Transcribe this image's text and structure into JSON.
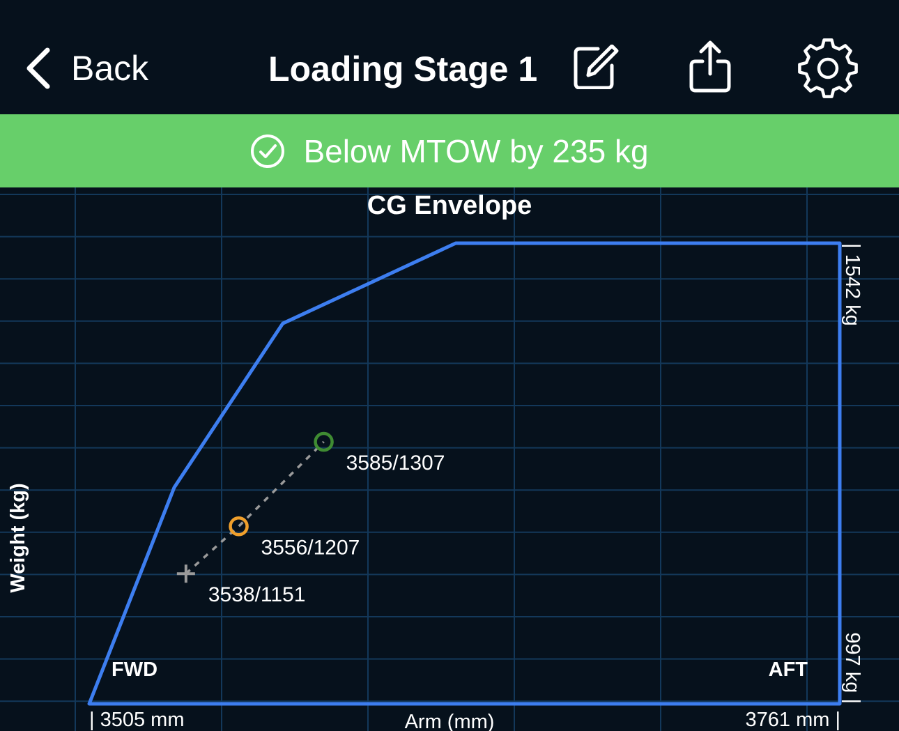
{
  "nav": {
    "back_label": "Back",
    "title": "Loading Stage 1",
    "icons": [
      "edit-icon",
      "share-icon",
      "gear-icon"
    ]
  },
  "status": {
    "text": "Below MTOW by 235 kg",
    "icon": "checkmark-circle-icon",
    "color": "#67cf6a"
  },
  "chart_data": {
    "type": "scatter",
    "title": "CG Envelope",
    "xlabel": "Arm (mm)",
    "ylabel": "Weight (kg)",
    "xlim": [
      3505,
      3761
    ],
    "ylim": [
      997,
      1542
    ],
    "x_min_label": "| 3505 mm",
    "x_max_label": "3761 mm |",
    "y_max_label": "| 1542 kg",
    "y_min_label": "997  kg |",
    "fwd_label": "FWD",
    "aft_label": "AFT",
    "envelope": {
      "color": "#3d7ef0",
      "points": [
        {
          "x": 3505,
          "y": 997
        },
        {
          "x": 3534,
          "y": 1253
        },
        {
          "x": 3571,
          "y": 1447
        },
        {
          "x": 3630,
          "y": 1542
        },
        {
          "x": 3761,
          "y": 1542
        },
        {
          "x": 3761,
          "y": 997
        }
      ]
    },
    "grid": true,
    "grid_color": "#13385a",
    "path_color": "#9a9a9a",
    "points": [
      {
        "x": 3538,
        "y": 1151,
        "label": "3538/1151",
        "marker": "cross",
        "color": "#9a9a9a"
      },
      {
        "x": 3556,
        "y": 1207,
        "label": "3556/1207",
        "marker": "circle",
        "color": "#f0a02c"
      },
      {
        "x": 3585,
        "y": 1307,
        "label": "3585/1307",
        "marker": "circle",
        "color": "#3f8b32"
      }
    ]
  }
}
